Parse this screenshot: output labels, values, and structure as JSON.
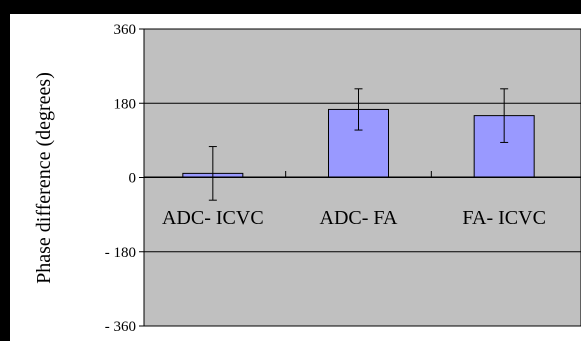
{
  "chart_data": {
    "type": "bar",
    "title": "",
    "xlabel": "",
    "ylabel": "Phase difference (degrees)",
    "ylim": [
      -360,
      360
    ],
    "yticks": [
      360,
      180,
      0,
      -180,
      -360
    ],
    "ytick_labels": [
      "360",
      "180",
      "0",
      "- 180",
      "- 360"
    ],
    "grid": true,
    "categories": [
      "ADC- ICVC",
      "ADC- FA",
      "FA- ICVC"
    ],
    "series": [
      {
        "values": [
          10,
          165,
          150
        ],
        "error": [
          65,
          50,
          65
        ]
      }
    ],
    "colors": {
      "bar_fill": "#9999ff",
      "plot_background": "#c0c0c0",
      "axis": "#000000",
      "frame": "#000000"
    }
  }
}
